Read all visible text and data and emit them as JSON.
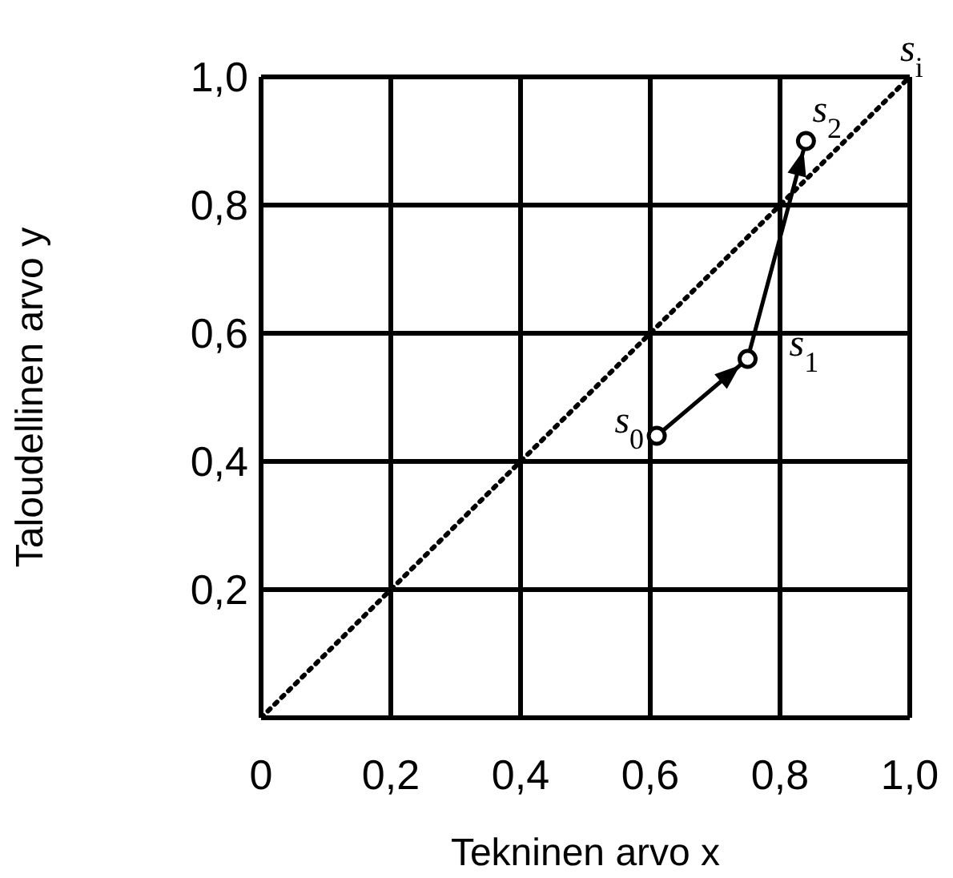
{
  "chart_data": {
    "type": "line",
    "xlabel": "Tekninen arvo x",
    "ylabel": "Taloudellinen arvo y",
    "xlim": [
      0,
      1
    ],
    "ylim": [
      0,
      1
    ],
    "xticks": [
      {
        "value": 0,
        "label": "0"
      },
      {
        "value": 0.2,
        "label": "0,2"
      },
      {
        "value": 0.4,
        "label": "0,4"
      },
      {
        "value": 0.6,
        "label": "0,6"
      },
      {
        "value": 0.8,
        "label": "0,8"
      },
      {
        "value": 1,
        "label": "1,0"
      }
    ],
    "yticks": [
      {
        "value": 0,
        "label": null
      },
      {
        "value": 0.2,
        "label": "0,2"
      },
      {
        "value": 0.4,
        "label": "0,4"
      },
      {
        "value": 0.6,
        "label": "0,6"
      },
      {
        "value": 0.8,
        "label": "0,8"
      },
      {
        "value": 1,
        "label": "1,0"
      }
    ],
    "grid": true,
    "legend": false,
    "series": [
      {
        "name": "s$_{i}$",
        "color": "#000000",
        "x": [
          0,
          1
        ],
        "values": [
          0,
          1
        ],
        "line_style": "dotted",
        "marker": "none"
      },
      {
        "color": "#000000",
        "x": [
          0.61,
          0.75,
          0.84
        ],
        "values": [
          0.44,
          0.56,
          0.9
        ],
        "line_style": "solid",
        "marker": "circle"
      }
    ],
    "annotations": [
      {
        "text": "s$_{0}$",
        "x": 0.61,
        "y": 0.44
      },
      {
        "text": "s$_{1}$",
        "x": 0.75,
        "y": 0.56
      },
      {
        "text": "s$_{2}$",
        "x": 0.84,
        "y": 0.9
      }
    ]
  }
}
